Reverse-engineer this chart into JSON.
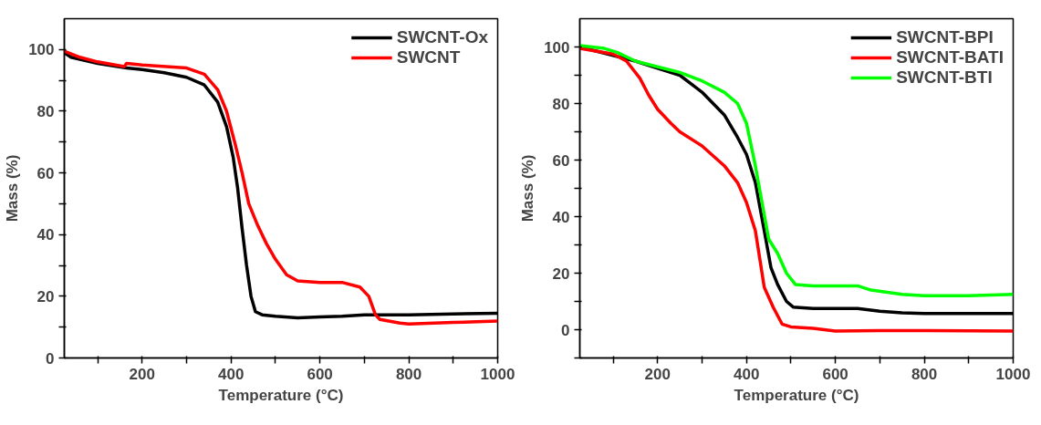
{
  "chart_data": [
    {
      "type": "line",
      "xlabel": "Temperature (°C)",
      "ylabel": "Mass (%)",
      "xlim": [
        25,
        1000
      ],
      "ylim": [
        0,
        110
      ],
      "xticks": [
        {
          "value": 100,
          "label": null
        },
        200,
        {
          "value": 300,
          "label": null
        },
        400,
        {
          "value": 500,
          "label": null
        },
        600,
        {
          "value": 700,
          "label": null
        },
        800,
        {
          "value": 900,
          "label": null
        },
        1000
      ],
      "yticks": [
        0,
        {
          "value": 10,
          "label": null
        },
        20,
        {
          "value": 30,
          "label": null
        },
        40,
        {
          "value": 50,
          "label": null
        },
        60,
        {
          "value": 70,
          "label": null
        },
        80,
        {
          "value": 90,
          "label": null
        },
        100
      ],
      "grid": false,
      "legend": "top right",
      "marker": "none",
      "line_style": "solid",
      "series": [
        {
          "name": "SWCNT-Ox",
          "color": "#000000",
          "x": [
            25,
            40,
            100,
            165,
            200,
            250,
            300,
            340,
            370,
            390,
            405,
            415,
            425,
            435,
            445,
            455,
            470,
            500,
            550,
            600,
            650,
            700,
            800,
            900,
            1000
          ],
          "values": [
            99,
            97.5,
            95.5,
            94,
            93.5,
            92.5,
            91,
            88.5,
            83,
            75,
            65,
            55,
            42,
            30,
            20,
            15,
            14,
            13.5,
            13,
            13.3,
            13.5,
            14,
            14,
            14.3,
            14.5
          ]
        },
        {
          "name": "SWCNT",
          "color": "#ff0000",
          "x": [
            25,
            60,
            100,
            160,
            165,
            200,
            300,
            340,
            370,
            390,
            410,
            425,
            440,
            460,
            480,
            500,
            525,
            550,
            600,
            650,
            690,
            710,
            725,
            735,
            780,
            800,
            900,
            1000
          ],
          "values": [
            99.5,
            97.5,
            96,
            94.5,
            95.5,
            95,
            94,
            92,
            87,
            80,
            69,
            60,
            50,
            43,
            37,
            32,
            27,
            25,
            24.5,
            24.5,
            23,
            20,
            14,
            12.5,
            11.3,
            11,
            11.5,
            12
          ]
        }
      ]
    },
    {
      "type": "line",
      "xlabel": "Temperature (°C)",
      "ylabel": "Mass (%)",
      "xlim": [
        25,
        1000
      ],
      "ylim": [
        -10,
        110
      ],
      "xticks": [
        {
          "value": 100,
          "label": null
        },
        200,
        {
          "value": 300,
          "label": null
        },
        400,
        {
          "value": 500,
          "label": null
        },
        600,
        {
          "value": 700,
          "label": null
        },
        800,
        {
          "value": 900,
          "label": null
        },
        1000
      ],
      "yticks": [
        {
          "value": -10,
          "label": null
        },
        0,
        {
          "value": 10,
          "label": null
        },
        20,
        {
          "value": 30,
          "label": null
        },
        40,
        {
          "value": 50,
          "label": null
        },
        60,
        {
          "value": 70,
          "label": null
        },
        80,
        {
          "value": 90,
          "label": null
        },
        100
      ],
      "grid": false,
      "legend": "top right",
      "marker": "none",
      "line_style": "solid",
      "series": [
        {
          "name": "SWCNT-BPI",
          "color": "#000000",
          "x": [
            25,
            100,
            150,
            200,
            250,
            300,
            350,
            380,
            400,
            420,
            440,
            455,
            470,
            490,
            505,
            550,
            600,
            650,
            700,
            750,
            800,
            900,
            1000
          ],
          "values": [
            100,
            97,
            95,
            92.5,
            90,
            84,
            76,
            68,
            62,
            52,
            35,
            22,
            16,
            10,
            8,
            7.5,
            7.5,
            7.5,
            6.5,
            6,
            5.7,
            5.7,
            5.7
          ]
        },
        {
          "name": "SWCNT-BATI",
          "color": "#ff0000",
          "x": [
            25,
            100,
            130,
            160,
            180,
            200,
            230,
            250,
            300,
            350,
            380,
            400,
            420,
            430,
            440,
            460,
            480,
            500,
            550,
            600,
            700,
            800,
            1000
          ],
          "values": [
            99.5,
            97.5,
            95,
            89,
            83,
            78,
            73,
            70,
            65,
            58,
            52,
            45,
            35,
            25,
            15,
            8,
            2,
            1,
            0.5,
            -0.5,
            -0.3,
            -0.3,
            -0.5
          ]
        },
        {
          "name": "SWCNT-BTI",
          "color": "#00ff00",
          "x": [
            25,
            80,
            110,
            150,
            200,
            250,
            300,
            350,
            380,
            400,
            420,
            435,
            450,
            470,
            490,
            510,
            550,
            650,
            680,
            750,
            800,
            900,
            1000
          ],
          "values": [
            100.5,
            99.5,
            98,
            95,
            93,
            91,
            88,
            84,
            80,
            73,
            58,
            45,
            32,
            27,
            20,
            16,
            15.5,
            15.5,
            14,
            12.5,
            12,
            12,
            12.5
          ]
        }
      ]
    }
  ]
}
